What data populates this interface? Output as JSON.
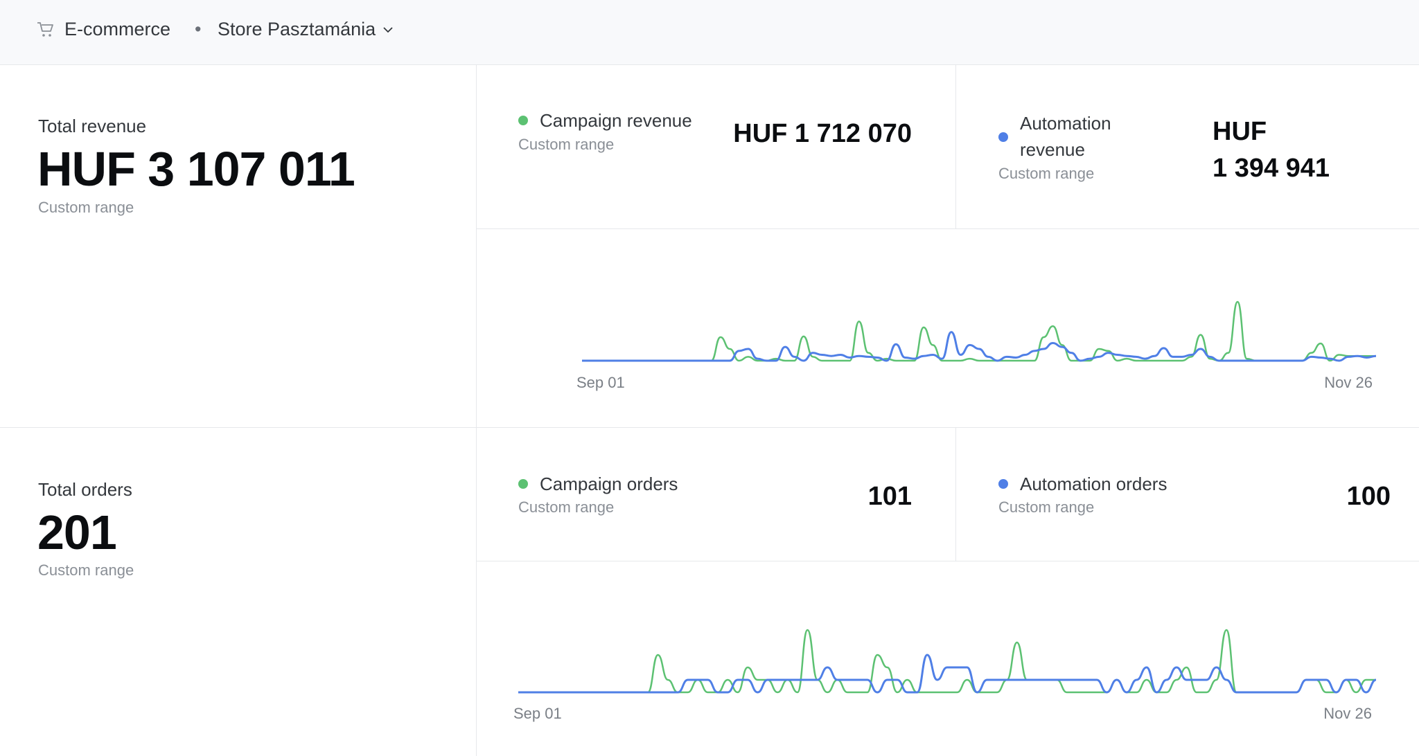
{
  "header": {
    "section_icon": "shopping-cart-icon",
    "section": "E-commerce",
    "separator": "•",
    "store": "Store Pasztamánia",
    "dropdown_icon": "chevron-down-icon"
  },
  "colors": {
    "campaign": "#5cc172",
    "automation": "#4f7fe6"
  },
  "revenue": {
    "total_label": "Total revenue",
    "total_value": "HUF 3 107 011",
    "total_range": "Custom range",
    "campaign_label": "Campaign revenue",
    "campaign_range": "Custom range",
    "campaign_value": "HUF 1 712 070",
    "automation_label_1": "Automation",
    "automation_label_2": "revenue",
    "automation_range": "Custom range",
    "automation_value_1": "HUF",
    "automation_value_2": "1 394 941"
  },
  "orders": {
    "total_label": "Total orders",
    "total_value": "201",
    "total_range": "Custom range",
    "campaign_label": "Campaign orders",
    "campaign_range": "Custom range",
    "campaign_value": "101",
    "automation_label": "Automation orders",
    "automation_range": "Custom range",
    "automation_value": "100"
  },
  "chart_data": [
    {
      "type": "line",
      "x_start": "Sep 01",
      "x_end": "Nov 26",
      "x_tick_labels": [
        "Sep 01",
        "Nov 26"
      ],
      "grid": false,
      "series": [
        {
          "key": "campaign",
          "values": [
            0,
            0,
            0,
            0,
            0,
            0,
            0,
            0,
            0,
            0,
            0,
            0,
            0,
            0,
            0,
            60000,
            30000,
            0,
            10000,
            0,
            0,
            5000,
            0,
            0,
            62000,
            10000,
            0,
            0,
            0,
            0,
            100000,
            20000,
            0,
            5000,
            0,
            0,
            0,
            85000,
            40000,
            0,
            0,
            0,
            5000,
            0,
            0,
            0,
            0,
            0,
            0,
            0,
            60000,
            88000,
            40000,
            0,
            0,
            0,
            30000,
            25000,
            0,
            5000,
            0,
            0,
            0,
            0,
            0,
            0,
            10000,
            66000,
            5000,
            0,
            20000,
            150000,
            5000,
            0,
            0,
            0,
            0,
            0,
            0,
            20000,
            44000,
            0,
            15000,
            12000,
            12000,
            12000,
            12000
          ]
        },
        {
          "key": "automation",
          "values": [
            0,
            0,
            0,
            0,
            0,
            0,
            0,
            0,
            0,
            0,
            0,
            0,
            0,
            0,
            0,
            0,
            0,
            25000,
            30000,
            5000,
            0,
            0,
            35000,
            10000,
            0,
            20000,
            15000,
            12000,
            15000,
            8000,
            12000,
            10000,
            8000,
            0,
            42000,
            8000,
            5000,
            12000,
            15000,
            5000,
            73000,
            15000,
            40000,
            30000,
            10000,
            0,
            10000,
            8000,
            15000,
            25000,
            30000,
            45000,
            35000,
            20000,
            0,
            5000,
            10000,
            20000,
            15000,
            12000,
            10000,
            5000,
            12000,
            32000,
            10000,
            10000,
            15000,
            30000,
            10000,
            0,
            0,
            0,
            0,
            0,
            0,
            0,
            0,
            0,
            0,
            10000,
            8000,
            5000,
            0,
            10000,
            12000,
            8000,
            12000
          ]
        }
      ]
    },
    {
      "type": "line",
      "x_start": "Sep 01",
      "x_end": "Nov 26",
      "x_tick_labels": [
        "Sep 01",
        "Nov 26"
      ],
      "grid": false,
      "series": [
        {
          "key": "campaign",
          "values": [
            0,
            0,
            0,
            0,
            0,
            0,
            0,
            0,
            0,
            0,
            0,
            0,
            0,
            0,
            3,
            1,
            0,
            0,
            1,
            0,
            0,
            1,
            0,
            2,
            1,
            1,
            0,
            1,
            0,
            5,
            1,
            0,
            1,
            0,
            0,
            0,
            3,
            2,
            0,
            1,
            0,
            0,
            0,
            0,
            0,
            1,
            0,
            0,
            0,
            1,
            4,
            1,
            1,
            1,
            1,
            0,
            0,
            0,
            0,
            0,
            1,
            0,
            0,
            1,
            0,
            0,
            1,
            2,
            0,
            0,
            1,
            5,
            0,
            0,
            0,
            0,
            0,
            0,
            0,
            1,
            1,
            0,
            0,
            1,
            0,
            1,
            1
          ]
        },
        {
          "key": "automation",
          "values": [
            0,
            0,
            0,
            0,
            0,
            0,
            0,
            0,
            0,
            0,
            0,
            0,
            0,
            0,
            0,
            0,
            0,
            1,
            1,
            1,
            0,
            0,
            1,
            1,
            0,
            1,
            1,
            1,
            1,
            1,
            1,
            2,
            1,
            1,
            1,
            1,
            0,
            1,
            1,
            0,
            0,
            3,
            1,
            2,
            2,
            2,
            0,
            1,
            1,
            1,
            1,
            1,
            1,
            1,
            1,
            1,
            1,
            1,
            1,
            0,
            1,
            0,
            1,
            2,
            0,
            1,
            2,
            1,
            1,
            1,
            2,
            1,
            0,
            0,
            0,
            0,
            0,
            0,
            0,
            1,
            1,
            1,
            0,
            1,
            1,
            0,
            1
          ]
        }
      ]
    }
  ]
}
